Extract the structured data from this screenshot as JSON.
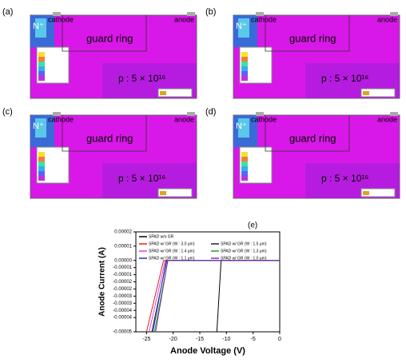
{
  "panels": [
    {
      "label": "(a)",
      "n_plus": "N⁺",
      "cathode": "cathode",
      "anode": "anode",
      "guard": "guard ring",
      "doping": "p : 5 × 10¹⁶"
    },
    {
      "label": "(b)",
      "n_plus": "N⁺",
      "cathode": "cathode",
      "anode": "anode",
      "guard": "guard ring",
      "doping": "p : 5 × 10¹⁶"
    },
    {
      "label": "(c)",
      "n_plus": "N⁺",
      "cathode": "cathode",
      "anode": "anode",
      "guard": "guard ring",
      "doping": "p : 5 × 10¹⁶"
    },
    {
      "label": "(d)",
      "n_plus": "N⁺",
      "cathode": "cathode",
      "anode": "anode",
      "guard": "guard ring",
      "doping": "p : 5 × 10¹⁶"
    }
  ],
  "chart_data": {
    "type": "line",
    "label": "(e)",
    "xlabel": "Anode Voltage (V)",
    "ylabel": "Anode Current (A)",
    "xlim": [
      -27,
      0
    ],
    "xticks": [
      -25,
      -20,
      -15,
      -10,
      -5,
      0
    ],
    "ylim": [
      -5e-05,
      2e-05
    ],
    "yticks": [
      2e-05,
      1e-05,
      {
        "value": 0,
        "label": "0.00000"
      },
      {
        "value": -5e-06,
        "label": "-0.00001"
      },
      -1e-05,
      {
        "value": -1.5e-05,
        "label": "-0.00002"
      },
      -2e-05,
      {
        "value": -2.5e-05,
        "label": "-0.00003"
      },
      -3e-05,
      {
        "value": -3.5e-05,
        "label": "-0.00004"
      },
      -4e-05,
      -5e-05
    ],
    "series": [
      {
        "name": "SPAD w/o GR",
        "color": "#000000",
        "x": [
          -11.8,
          -11,
          0
        ],
        "values": [
          -5e-05,
          0,
          0
        ]
      },
      {
        "name": "SPAD w/ GR (W : 3.0 μm)",
        "color": "#e0201b",
        "x": [
          -25,
          -21.8,
          0
        ],
        "values": [
          -5e-05,
          0,
          0
        ]
      },
      {
        "name": "SPAD w/ GR (W : 1.5 μm)",
        "color": "#222222",
        "x": [
          -24,
          -21.2,
          0
        ],
        "values": [
          -5e-05,
          0,
          0
        ]
      },
      {
        "name": "SPAD w/ GR (W : 1.4 μm)",
        "color": "#e040e0",
        "x": [
          -24.5,
          -21.5,
          0
        ],
        "values": [
          -5e-05,
          0,
          0
        ]
      },
      {
        "name": "SPAD w/ GR (W : 1.3 μm)",
        "color": "#20a020",
        "x": [
          -23.5,
          -21,
          0
        ],
        "values": [
          -5e-05,
          0,
          0
        ]
      },
      {
        "name": "SPAD w/ GR (W : 1.1 μm)",
        "color": "#2030c0",
        "x": [
          -23.8,
          -21.3,
          0
        ],
        "values": [
          -5e-05,
          0,
          0
        ]
      },
      {
        "name": "SPAD w/ GR (W : 1.0 μm)",
        "color": "#8030b0",
        "x": [
          -23.3,
          -21,
          0
        ],
        "values": [
          -5e-05,
          0,
          0
        ]
      }
    ]
  }
}
